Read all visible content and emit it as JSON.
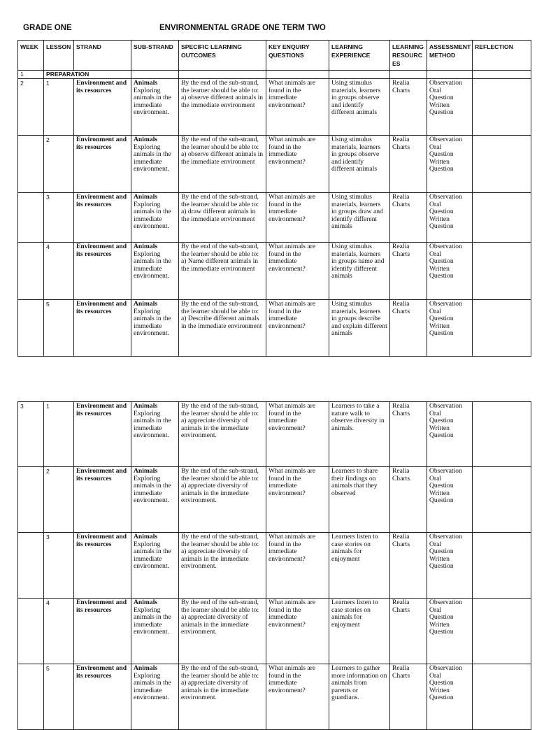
{
  "header": {
    "left": "GRADE ONE",
    "center": "ENVIRONMENTAL GRADE ONE TERM TWO"
  },
  "columns": [
    "WEEK",
    "LESSON",
    "STRAND",
    "SUB-STRAND",
    "SPECIFIC LEARNING OUTCOMES",
    "KEY ENQUIRY QUESTIONS",
    "LEARNING EXPERIENCE",
    "LEARNING RESOURC ES",
    "ASSESSMENT METHOD",
    "REFLECTION"
  ],
  "preparation": {
    "week": "1",
    "label": "PREPARATION"
  },
  "table1": [
    {
      "week": "2",
      "lesson": "1",
      "strand": "Environment and its resources",
      "substrand_title": "Animals",
      "substrand": "Exploring animals in the immediate environment.",
      "outcome": "By the end of the sub-strand, the learner should be able to:\na) observe different animals in the immediate environment",
      "question": "What animals are found in the immediate environment?",
      "experience": "Using stimulus materials, learners in groups observe and identify different animals",
      "resources": "Realia\nCharts",
      "assessment": "Observation\nOral\nQuestion\nWritten\nQuestion",
      "reflection": ""
    },
    {
      "week": "",
      "lesson": "2",
      "strand": "Environment and its resources",
      "substrand_title": "Animals",
      "substrand": "Exploring animals in the immediate environment.",
      "outcome": "By the end of the sub-strand, the learner should be able to:\na) observe different animals in the immediate environment",
      "question": "What animals are found in the immediate environment?",
      "experience": "Using stimulus materials, learners in groups observe and identify different animals",
      "resources": "Realia\nCharts",
      "assessment": "Observation\nOral\nQuestion\nWritten\nQuestion",
      "reflection": ""
    },
    {
      "week": "",
      "lesson": "3",
      "strand": "Environment and its resources",
      "substrand_title": "Animals",
      "substrand": "Exploring animals in the immediate environment.",
      "outcome": "By the end of the sub-strand, the learner should be able to:\na) draw different animals in the immediate environment",
      "question": "What animals are found in the immediate environment?",
      "experience": "Using stimulus materials, learners in groups draw and identify different animals",
      "resources": "Realia\nCharts",
      "assessment": "Observation\nOral\nQuestion\nWritten\nQuestion",
      "reflection": ""
    },
    {
      "week": "",
      "lesson": "4",
      "strand": "Environment and its resources",
      "substrand_title": "Animals",
      "substrand": "Exploring animals in the immediate environment.",
      "outcome": "By the end of the sub-strand, the learner should be able to:\na) Name different animals in the immediate environment",
      "question": "What animals are found in the immediate environment?",
      "experience": "Using stimulus materials, learners in groups name and identify different animals",
      "resources": "Realia\nCharts",
      "assessment": "Observation\nOral\nQuestion\nWritten\nQuestion",
      "reflection": ""
    },
    {
      "week": "",
      "lesson": "5",
      "strand": "Environment and its resources",
      "substrand_title": "Animals",
      "substrand": "Exploring animals in the immediate environment.",
      "outcome": "By the end of the sub-strand, the learner should be able to:\na) Describe different animals in the immediate environment",
      "question": "What animals are found in the immediate environment?",
      "experience": "Using stimulus materials, learners in groups describe and explain different animals",
      "resources": "Realia\nCharts",
      "assessment": "Observation\nOral\nQuestion\nWritten\nQuestion",
      "reflection": ""
    }
  ],
  "table2": [
    {
      "week": "3",
      "lesson": "1",
      "strand": "Environment and its resources",
      "substrand_title": "Animals",
      "substrand": "Exploring animals in the immediate environment.",
      "outcome": "By the end of the sub-strand, the learner should be able to:\na) appreciate diversity of animals in the immediate environment.",
      "question": "What animals are found in the immediate environment?",
      "experience": "Learners to take a nature walk to observe diversity in animals.",
      "resources": "Realia\nCharts",
      "assessment": "Observation\nOral\nQuestion\nWritten\nQuestion",
      "reflection": ""
    },
    {
      "week": "",
      "lesson": "2",
      "strand": "Environment and its resources",
      "substrand_title": "Animals",
      "substrand": "Exploring animals in the immediate environment.",
      "outcome": "By the end of the sub-strand, the learner should be able to:\na) appreciate diversity of animals in the immediate environment.",
      "question": "What animals are found in the immediate environment?",
      "experience": "Learners to share their findings on animals that they observed",
      "resources": "Realia\nCharts",
      "assessment": "Observation\nOral\nQuestion\nWritten\nQuestion",
      "reflection": ""
    },
    {
      "week": "",
      "lesson": "3",
      "strand": "Environment and its resources",
      "substrand_title": "Animals",
      "substrand": "Exploring animals in the immediate environment.",
      "outcome": "By the end of the sub-strand, the learner should be able to:\na) appreciate diversity of animals in the immediate environment.",
      "question": "What animals are found in the immediate environment?",
      "experience": "Learners listen to case stories on animals for enjoyment",
      "resources": "Realia\nCharts",
      "assessment": "Observation\nOral\nQuestion\nWritten\nQuestion",
      "reflection": ""
    },
    {
      "week": "",
      "lesson": "4",
      "strand": "Environment and its resources",
      "substrand_title": "Animals",
      "substrand": "Exploring animals in the immediate environment.",
      "outcome": "By the end of the sub-strand, the learner should be able to:\na) appreciate diversity of animals in the immediate environment.",
      "question": "What animals are found in the immediate environment?",
      "experience": "Learners listen to case stories on animals for enjoyment",
      "resources": "Realia\nCharts",
      "assessment": "Observation\nOral\nQuestion\nWritten\nQuestion",
      "reflection": ""
    },
    {
      "week": "",
      "lesson": "5",
      "strand": "Environment and its resources",
      "substrand_title": "Animals",
      "substrand": "Exploring animals in the immediate environment.",
      "outcome": "By the end of the sub-strand, the learner should be able to:\na) appreciate diversity of animals in the immediate environment.",
      "question": "What animals are found in the immediate environment?",
      "experience": "Learners to gather more information on animals from parents or guardians.",
      "resources": "Realia\nCharts",
      "assessment": "Observation\nOral\nQuestion\nWritten\nQuestion",
      "reflection": ""
    }
  ]
}
